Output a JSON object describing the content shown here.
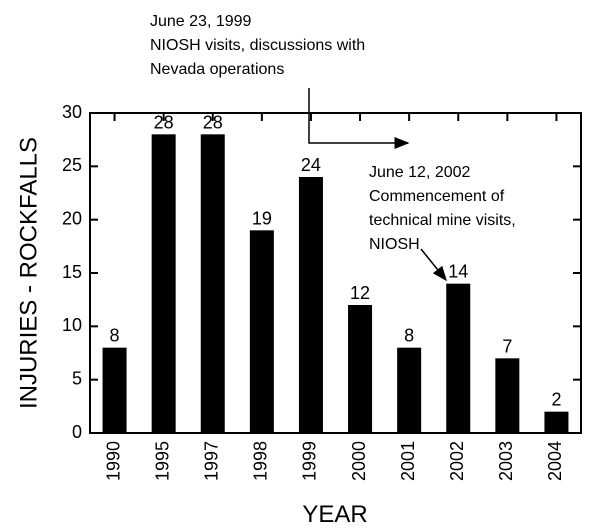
{
  "chart_data": {
    "type": "bar",
    "categories": [
      "1990",
      "1995",
      "1997",
      "1998",
      "1999",
      "2000",
      "2001",
      "2002",
      "2003",
      "2004"
    ],
    "values": [
      8,
      28,
      28,
      19,
      24,
      12,
      8,
      14,
      7,
      2
    ],
    "color": "#000000",
    "x_label": "YEAR",
    "y_label": "INJURIES - ROCKFALLS",
    "ylim": [
      0,
      30
    ],
    "yticks": [
      0,
      5,
      10,
      15,
      20,
      25,
      30
    ],
    "annotations": [
      {
        "lines": [
          "June 23, 1999",
          "NIOSH visits, discussions with",
          "Nevada operations"
        ]
      },
      {
        "lines": [
          "June 12, 2002",
          "Commencement of",
          "technical mine visits,",
          "NIOSH"
        ]
      }
    ]
  }
}
